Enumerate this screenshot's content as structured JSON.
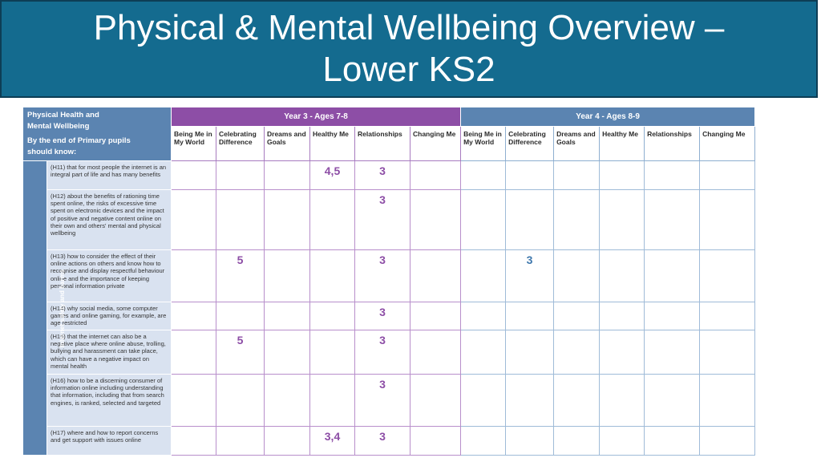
{
  "title": {
    "line1": "Physical & Mental Wellbeing Overview –",
    "line2": "Lower KS2"
  },
  "table": {
    "header_left": {
      "line1": "Physical Health and",
      "line2": "Mental Wellbeing",
      "line3": "By the end of Primary pupils",
      "line4": "should know:"
    },
    "year3_label": "Year 3 - Ages 7-8",
    "year4_label": "Year 4 - Ages 8-9",
    "columns": [
      "Being Me in My World",
      "Celebrating Difference",
      "Dreams and Goals",
      "Healthy Me",
      "Relationships",
      "Changing Me"
    ],
    "side_label": "Internet safety and harms",
    "rows": [
      {
        "text": "(H11) that for most people the internet is an integral part of life and has many benefits",
        "y3": [
          "",
          "",
          "",
          "4,5",
          "3",
          ""
        ],
        "y4": [
          "",
          "",
          "",
          "",
          "",
          ""
        ]
      },
      {
        "text": "(H12) about the benefits of rationing time spent online, the risks of excessive time spent on electronic devices and the impact of positive and negative content online on their own and others' mental and physical wellbeing",
        "y3": [
          "",
          "",
          "",
          "",
          "3",
          ""
        ],
        "y4": [
          "",
          "",
          "",
          "",
          "",
          ""
        ]
      },
      {
        "text": "(H13) how to consider the effect of their online actions on others and know how to recognise and display respectful behaviour online and the importance of keeping personal information private",
        "y3": [
          "",
          "5",
          "",
          "",
          "3",
          ""
        ],
        "y4": [
          "",
          "3",
          "",
          "",
          "",
          ""
        ]
      },
      {
        "text": "(H14) why social media, some computer games and online gaming, for example, are age restricted",
        "y3": [
          "",
          "",
          "",
          "",
          "3",
          ""
        ],
        "y4": [
          "",
          "",
          "",
          "",
          "",
          ""
        ]
      },
      {
        "text": "(H15) that the internet can also be a negative place where online abuse, trolling, bullying and harassment can take place, which can have a negative impact on mental health",
        "y3": [
          "",
          "5",
          "",
          "",
          "3",
          ""
        ],
        "y4": [
          "",
          "",
          "",
          "",
          "",
          ""
        ]
      },
      {
        "text": "(H16) how to be a discerning consumer of information online including understanding that information, including that from search engines, is ranked, selected and targeted",
        "y3": [
          "",
          "",
          "",
          "",
          "3",
          ""
        ],
        "y4": [
          "",
          "",
          "",
          "",
          "",
          ""
        ]
      },
      {
        "text": "(H17) where and how to report concerns and get support with issues online",
        "y3": [
          "",
          "",
          "",
          "3,4",
          "3",
          ""
        ],
        "y4": [
          "",
          "",
          "",
          "",
          "",
          ""
        ]
      }
    ]
  },
  "colors": {
    "banner": "#146b8f",
    "year3": "#8d4ea6",
    "year4": "#5b84b1",
    "statement_bg": "#d9e2f0"
  }
}
